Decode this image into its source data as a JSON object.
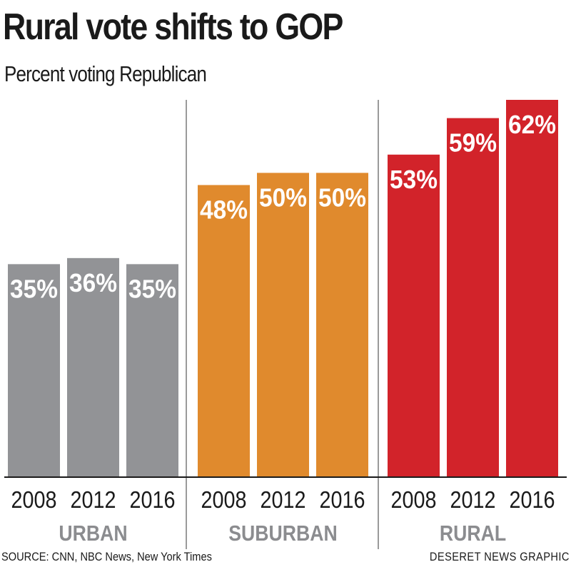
{
  "header": {
    "title": "Rural vote shifts to GOP",
    "subtitle": "Percent voting Republican"
  },
  "footer": {
    "source": "SOURCE: CNN, NBC News, New York Times",
    "credit": "DESERET NEWS GRAPHIC"
  },
  "chart_data": {
    "type": "bar",
    "title": "Rural vote shifts to GOP",
    "subtitle": "Percent voting Republican",
    "ylim": [
      0,
      62
    ],
    "grid": false,
    "legend": "none",
    "groups": [
      {
        "name": "URBAN",
        "color": "#929396",
        "years": [
          "2008",
          "2012",
          "2016"
        ],
        "values": [
          35,
          36,
          35
        ],
        "labels": [
          "35%",
          "36%",
          "35%"
        ]
      },
      {
        "name": "SUBURBAN",
        "color": "#e08a2d",
        "years": [
          "2008",
          "2012",
          "2016"
        ],
        "values": [
          48,
          50,
          50
        ],
        "labels": [
          "48%",
          "50%",
          "50%"
        ]
      },
      {
        "name": "RURAL",
        "color": "#d2232a",
        "years": [
          "2008",
          "2012",
          "2016"
        ],
        "values": [
          53,
          59,
          62
        ],
        "labels": [
          "53%",
          "59%",
          "62%"
        ]
      }
    ],
    "group_label_color": "#8b8c8f",
    "separator_color": "#9a9a9a"
  }
}
